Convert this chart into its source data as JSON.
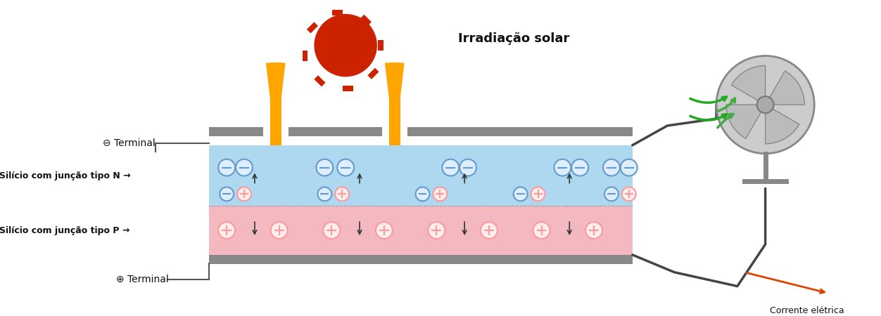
{
  "bg_color": "#ffffff",
  "title": "",
  "solar_label": "Irradiação solar",
  "neg_terminal_label": "⊖ Terminal",
  "pos_terminal_label": "⊕ Terminal",
  "n_type_label": "Silício com junção tipo N →",
  "p_type_label": "Silício com junção tipo P →",
  "corrente_label": "Corrente elétrica",
  "n_layer_color": "#add8f0",
  "p_layer_color": "#f4b8c0",
  "border_color": "#708090",
  "arrow_color": "#FFA500",
  "sun_body_color": "#cc2200",
  "sun_ray_color": "#cc2200",
  "neg_ion_color": "#6699cc",
  "pos_ion_color": "#ff9999",
  "text_color": "#111111",
  "green_arrow_color": "#44aa44",
  "orange_arrow_color": "#dd6600"
}
